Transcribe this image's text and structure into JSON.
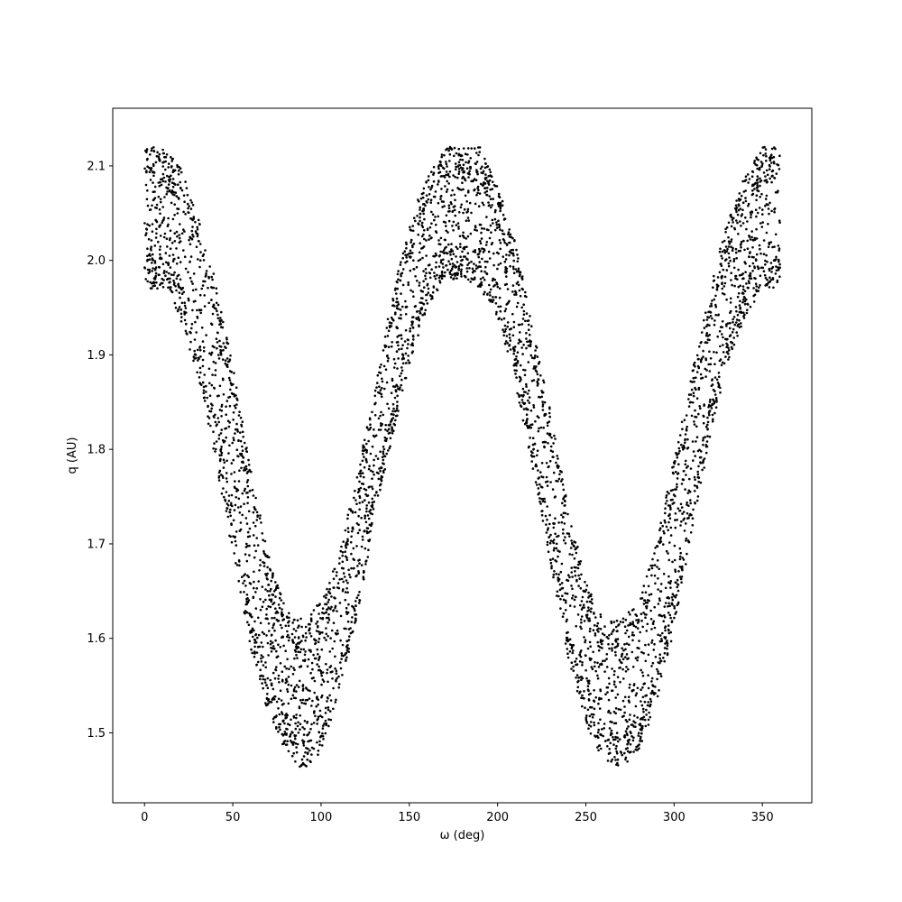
{
  "chart_data": {
    "type": "scatter",
    "title": "",
    "xlabel": "ω (deg)",
    "ylabel": "q (AU)",
    "xlim": [
      -18,
      378
    ],
    "ylim": [
      1.426,
      2.161
    ],
    "xticks": [
      0,
      50,
      100,
      150,
      200,
      250,
      300,
      350
    ],
    "yticks": [
      1.5,
      1.6,
      1.7,
      1.8,
      1.9,
      2.0,
      2.1
    ],
    "ytick_labels": [
      "1.5",
      "1.6",
      "1.7",
      "1.8",
      "1.9",
      "2.0",
      "2.1"
    ],
    "grid": false,
    "legend": "none",
    "series": [
      {
        "color": "#000000",
        "marker": "dot",
        "description_values": "dense band of points following q ≈ 1.79 + 0.25·cos(2ω), band width ≈ 0.13 AU; maxima near ω = 0°, 180°, 360° (q up to ~2.12), minima near ω = 90°, 270° (q down to ~1.46)",
        "envelope": {
          "omega": [
            0,
            10,
            20,
            30,
            40,
            50,
            60,
            70,
            80,
            90,
            100,
            110,
            120,
            130,
            140,
            150,
            160,
            170,
            180,
            190,
            200,
            210,
            220,
            230,
            240,
            250,
            260,
            270,
            280,
            290,
            300,
            310,
            320,
            330,
            340,
            350,
            360
          ],
          "q_upper": [
            2.12,
            2.12,
            2.1,
            2.05,
            1.98,
            1.89,
            1.78,
            1.69,
            1.63,
            1.62,
            1.64,
            1.69,
            1.77,
            1.86,
            1.96,
            2.04,
            2.09,
            2.12,
            2.12,
            2.12,
            2.08,
            2.02,
            1.93,
            1.84,
            1.74,
            1.66,
            1.62,
            1.62,
            1.64,
            1.7,
            1.79,
            1.88,
            1.97,
            2.04,
            2.09,
            2.12,
            2.12
          ],
          "q_lower": [
            1.97,
            1.97,
            1.94,
            1.88,
            1.79,
            1.69,
            1.59,
            1.52,
            1.48,
            1.46,
            1.48,
            1.54,
            1.62,
            1.72,
            1.81,
            1.89,
            1.95,
            1.98,
            1.98,
            1.97,
            1.94,
            1.87,
            1.78,
            1.68,
            1.58,
            1.51,
            1.47,
            1.46,
            1.48,
            1.53,
            1.61,
            1.71,
            1.81,
            1.89,
            1.94,
            1.97,
            1.97
          ]
        }
      }
    ]
  }
}
